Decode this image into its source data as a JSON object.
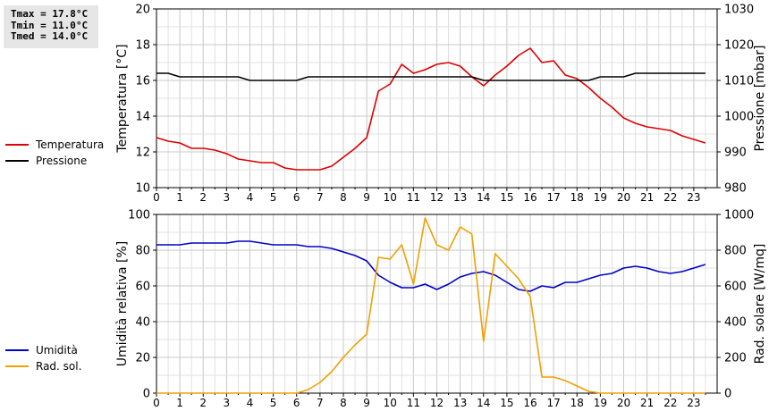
{
  "stats": {
    "tmax": "Tmax = 17.8°C",
    "tmin": "Tmin = 11.0°C",
    "tmed": "Tmed = 14.0°C"
  },
  "legend_top": [
    {
      "label": "Temperatura",
      "color": "#dd0000"
    },
    {
      "label": "Pressione",
      "color": "#000000"
    }
  ],
  "legend_bottom": [
    {
      "label": "Umidità",
      "color": "#0000c8"
    },
    {
      "label": "Rad. sol.",
      "color": "#f0a000"
    }
  ],
  "chart_data": [
    {
      "type": "line",
      "xlabel": "",
      "xlim": [
        0,
        24
      ],
      "xticks": [
        "0",
        "1",
        "2",
        "3",
        "4",
        "5",
        "6",
        "7",
        "8",
        "9",
        "10",
        "11",
        "12",
        "13",
        "14",
        "15",
        "16",
        "17",
        "18",
        "19",
        "20",
        "21",
        "22",
        "23"
      ],
      "ylabel": "Temperatura [°C]",
      "ylim": [
        10,
        20
      ],
      "yticks": [
        "10",
        "12",
        "14",
        "16",
        "18",
        "20"
      ],
      "y2label": "Pressione [mbar]",
      "y2lim": [
        980,
        1030
      ],
      "y2ticks": [
        "980",
        "990",
        "1000",
        "1010",
        "1020",
        "1030"
      ],
      "grid": true,
      "series": [
        {
          "name": "Temperatura",
          "axis": "left",
          "color": "#dd0000",
          "x": [
            0,
            0.5,
            1,
            1.5,
            2,
            2.5,
            3,
            3.5,
            4,
            4.5,
            5,
            5.5,
            6,
            6.5,
            7,
            7.5,
            8,
            8.5,
            9,
            9.5,
            10,
            10.5,
            11,
            11.5,
            12,
            12.5,
            13,
            13.5,
            14,
            14.5,
            15,
            15.5,
            16,
            16.5,
            17,
            17.5,
            18,
            18.5,
            19,
            19.5,
            20,
            20.5,
            21,
            21.5,
            22,
            22.5,
            23,
            23.5
          ],
          "y": [
            12.8,
            12.6,
            12.5,
            12.2,
            12.2,
            12.1,
            11.9,
            11.6,
            11.5,
            11.4,
            11.4,
            11.1,
            11.0,
            11.0,
            11.0,
            11.2,
            11.7,
            12.2,
            12.8,
            15.4,
            15.8,
            16.9,
            16.4,
            16.6,
            16.9,
            17.0,
            16.8,
            16.2,
            15.7,
            16.3,
            16.8,
            17.4,
            17.8,
            17.0,
            17.1,
            16.3,
            16.1,
            15.6,
            15.0,
            14.5,
            13.9,
            13.6,
            13.4,
            13.3,
            13.2,
            12.9,
            12.7,
            12.5
          ]
        },
        {
          "name": "Pressione",
          "axis": "right",
          "color": "#000000",
          "x": [
            0,
            0.5,
            1,
            1.5,
            2,
            2.5,
            3,
            3.5,
            4,
            4.5,
            5,
            5.5,
            6,
            6.5,
            7,
            7.5,
            8,
            8.5,
            9,
            9.5,
            10,
            10.5,
            11,
            11.5,
            12,
            12.5,
            13,
            13.5,
            14,
            14.5,
            15,
            15.5,
            16,
            16.5,
            17,
            17.5,
            18,
            18.5,
            19,
            19.5,
            20,
            20.5,
            21,
            21.5,
            22,
            22.5,
            23,
            23.5
          ],
          "y": [
            1012,
            1012,
            1011,
            1011,
            1011,
            1011,
            1011,
            1011,
            1010,
            1010,
            1010,
            1010,
            1010,
            1011,
            1011,
            1011,
            1011,
            1011,
            1011,
            1011,
            1011,
            1011,
            1011,
            1011,
            1011,
            1011,
            1011,
            1011,
            1010,
            1010,
            1010,
            1010,
            1010,
            1010,
            1010,
            1010,
            1010,
            1010,
            1011,
            1011,
            1011,
            1012,
            1012,
            1012,
            1012,
            1012,
            1012,
            1012
          ]
        }
      ]
    },
    {
      "type": "line",
      "xlabel": "",
      "xlim": [
        0,
        24
      ],
      "xticks": [
        "0",
        "1",
        "2",
        "3",
        "4",
        "5",
        "6",
        "7",
        "8",
        "9",
        "10",
        "11",
        "12",
        "13",
        "14",
        "15",
        "16",
        "17",
        "18",
        "19",
        "20",
        "21",
        "22",
        "23"
      ],
      "ylabel": "Umidità relativa [%]",
      "ylim": [
        0,
        100
      ],
      "yticks": [
        "0",
        "20",
        "40",
        "60",
        "80",
        "100"
      ],
      "y2label": "Rad. solare [W/mq]",
      "y2lim": [
        0,
        1000
      ],
      "y2ticks": [
        "0",
        "200",
        "400",
        "600",
        "800",
        "1000"
      ],
      "grid": true,
      "series": [
        {
          "name": "Umidità",
          "axis": "left",
          "color": "#0000c8",
          "x": [
            0,
            0.5,
            1,
            1.5,
            2,
            2.5,
            3,
            3.5,
            4,
            4.5,
            5,
            5.5,
            6,
            6.5,
            7,
            7.5,
            8,
            8.5,
            9,
            9.5,
            10,
            10.5,
            11,
            11.5,
            12,
            12.5,
            13,
            13.5,
            14,
            14.5,
            15,
            15.5,
            16,
            16.5,
            17,
            17.5,
            18,
            18.5,
            19,
            19.5,
            20,
            20.5,
            21,
            21.5,
            22,
            22.5,
            23,
            23.5
          ],
          "y": [
            83,
            83,
            83,
            84,
            84,
            84,
            84,
            85,
            85,
            84,
            83,
            83,
            83,
            82,
            82,
            81,
            79,
            77,
            74,
            66,
            62,
            59,
            59,
            61,
            58,
            61,
            65,
            67,
            68,
            66,
            62,
            58,
            57,
            60,
            59,
            62,
            62,
            64,
            66,
            67,
            70,
            71,
            70,
            68,
            67,
            68,
            70,
            72
          ]
        },
        {
          "name": "Rad. sol.",
          "axis": "right",
          "color": "#f0a000",
          "x": [
            0,
            0.5,
            1,
            1.5,
            2,
            2.5,
            3,
            3.5,
            4,
            4.5,
            5,
            5.5,
            6,
            6.5,
            7,
            7.5,
            8,
            8.5,
            9,
            9.5,
            10,
            10.5,
            11,
            11.5,
            12,
            12.5,
            13,
            13.5,
            14,
            14.5,
            15,
            15.5,
            16,
            16.5,
            17,
            17.5,
            18,
            18.5,
            19,
            19.5,
            20,
            20.5,
            21,
            21.5,
            22,
            22.5,
            23,
            23.5
          ],
          "y": [
            0,
            0,
            0,
            0,
            0,
            0,
            0,
            0,
            0,
            0,
            0,
            0,
            0,
            20,
            60,
            120,
            200,
            270,
            330,
            760,
            750,
            830,
            610,
            980,
            830,
            800,
            930,
            890,
            290,
            780,
            710,
            640,
            540,
            90,
            90,
            70,
            40,
            10,
            0,
            0,
            0,
            0,
            0,
            0,
            0,
            0,
            0,
            0
          ]
        }
      ]
    }
  ]
}
